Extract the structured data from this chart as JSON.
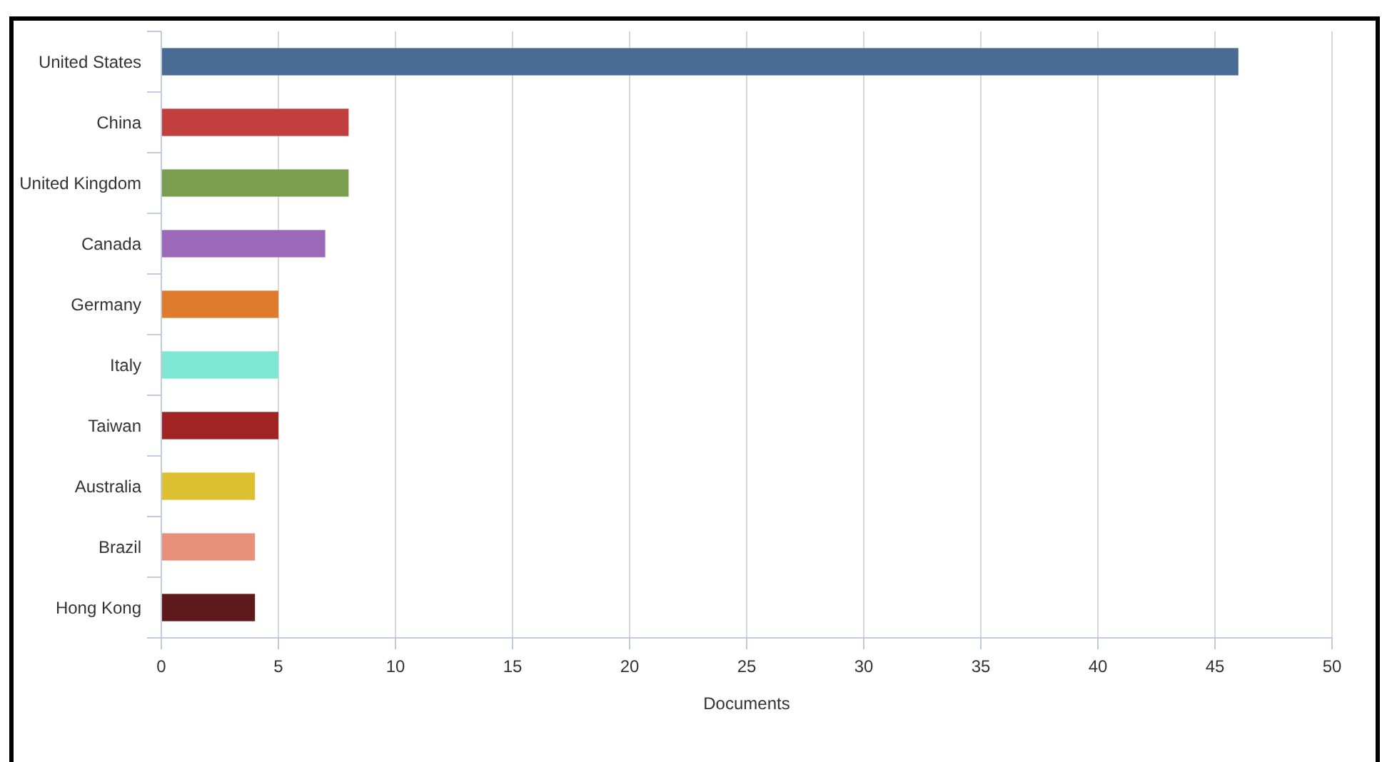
{
  "chart_data": {
    "type": "bar",
    "orientation": "horizontal",
    "xlabel": "Documents",
    "categories": [
      "United States",
      "China",
      "United Kingdom",
      "Canada",
      "Germany",
      "Italy",
      "Taiwan",
      "Australia",
      "Brazil",
      "Hong Kong"
    ],
    "values": [
      46,
      8,
      8,
      7,
      5,
      5,
      5,
      4,
      4,
      4
    ],
    "colors": [
      "#4a6b93",
      "#c23f3f",
      "#7a9e50",
      "#9b69b8",
      "#e07b2e",
      "#7ee8d4",
      "#a02424",
      "#dcc030",
      "#e8917a",
      "#5e1a1a"
    ],
    "xlim": [
      0,
      50
    ],
    "xticks": [
      0,
      5,
      10,
      15,
      20,
      25,
      30,
      35,
      40,
      45,
      50
    ],
    "grid": "x"
  }
}
